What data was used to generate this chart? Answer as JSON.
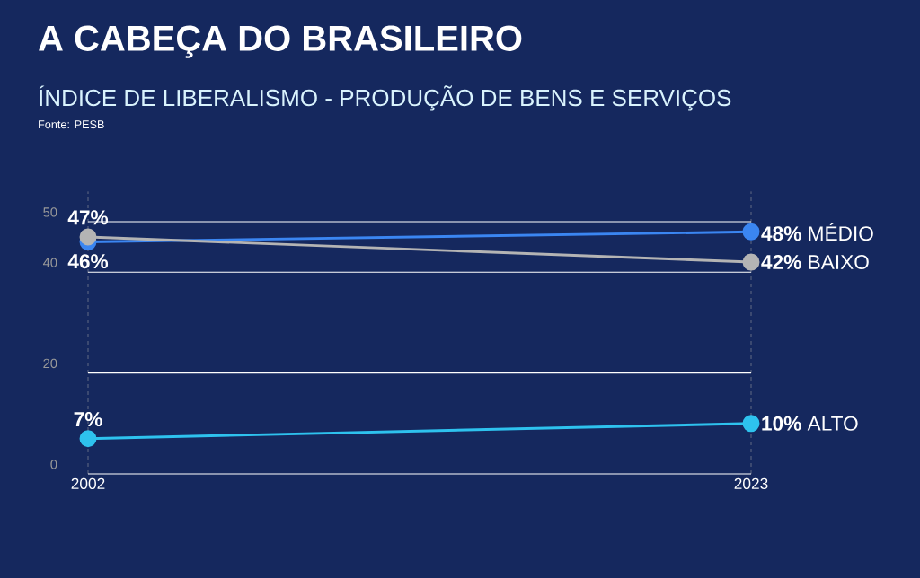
{
  "chart_data": {
    "type": "line",
    "title": "A CABEÇA DO BRASILEIRO",
    "subtitle": "ÍNDICE DE LIBERALISMO - PRODUÇÃO DE BENS E SERVIÇOS",
    "annotations": [
      "Fonte: PESB"
    ],
    "x": [
      2002,
      2023
    ],
    "xlim": [
      2002,
      2023
    ],
    "xticks": [
      2002,
      2023
    ],
    "ylim": [
      0,
      56
    ],
    "yticks": [
      0,
      20,
      40,
      50
    ],
    "grid": true,
    "marker": "circle",
    "series": [
      {
        "name": "MÉDIO",
        "color": "#3b86f2",
        "values": [
          46,
          48
        ],
        "value_labels": [
          "46%",
          "48%"
        ]
      },
      {
        "name": "BAIXO",
        "color": "#b4b4b4",
        "values": [
          47,
          42
        ],
        "value_labels": [
          "47%",
          "42%"
        ]
      },
      {
        "name": "ALTO",
        "color": "#2ec2ee",
        "values": [
          7,
          10
        ],
        "value_labels": [
          "7%",
          "10%"
        ]
      }
    ]
  }
}
